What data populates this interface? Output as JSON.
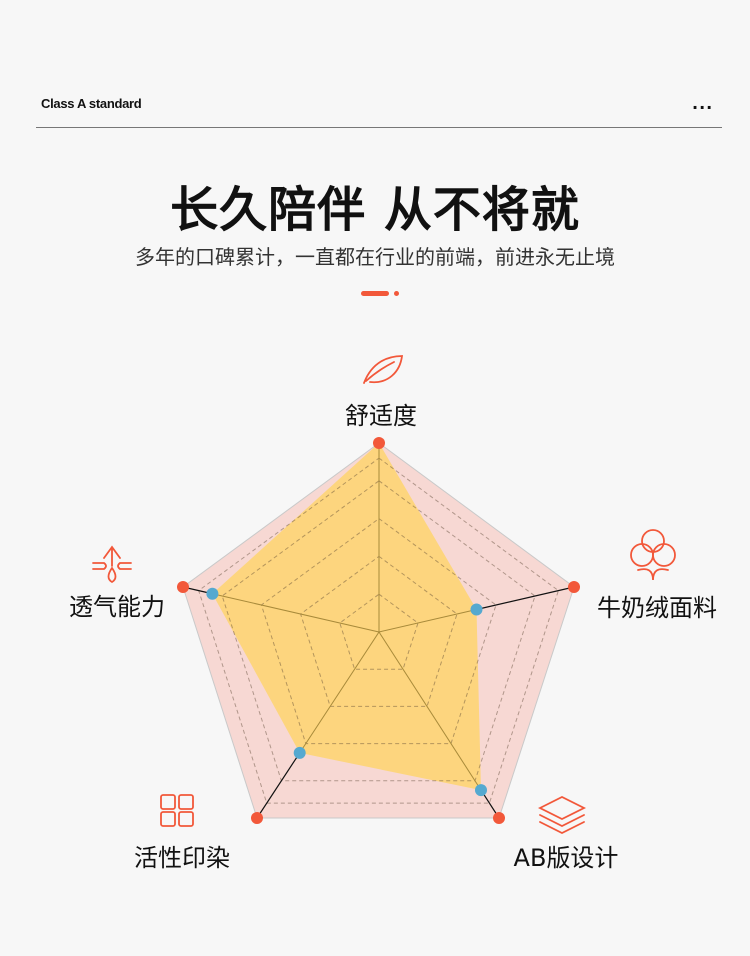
{
  "header": {
    "brand": "Class A standard",
    "more_label": "..."
  },
  "hero": {
    "title": "长久陪伴 从不将就",
    "subtitle": "多年的口碑累计，一直都在行业的前端，前进永无止境"
  },
  "colors": {
    "accent": "#f2583a",
    "value_fill": "#fdd57e",
    "max_fill": "#f7d8d3",
    "value_point": "#55a9d0"
  },
  "chart_data": {
    "type": "radar",
    "categories": [
      "舒适度",
      "牛奶绒面料",
      "AB版设计",
      "活性印染",
      "透气能力"
    ],
    "icons": [
      "leaf-icon",
      "cotton-icon",
      "layers-icon",
      "grid-icon",
      "breathable-icon"
    ],
    "series": [
      {
        "values": [
          1.0,
          1.0,
          1.0,
          1.0,
          1.0
        ]
      },
      {
        "values": [
          1.0,
          0.5,
          0.85,
          0.65,
          0.85
        ]
      }
    ],
    "range": [
      0,
      1
    ],
    "grid": true
  }
}
